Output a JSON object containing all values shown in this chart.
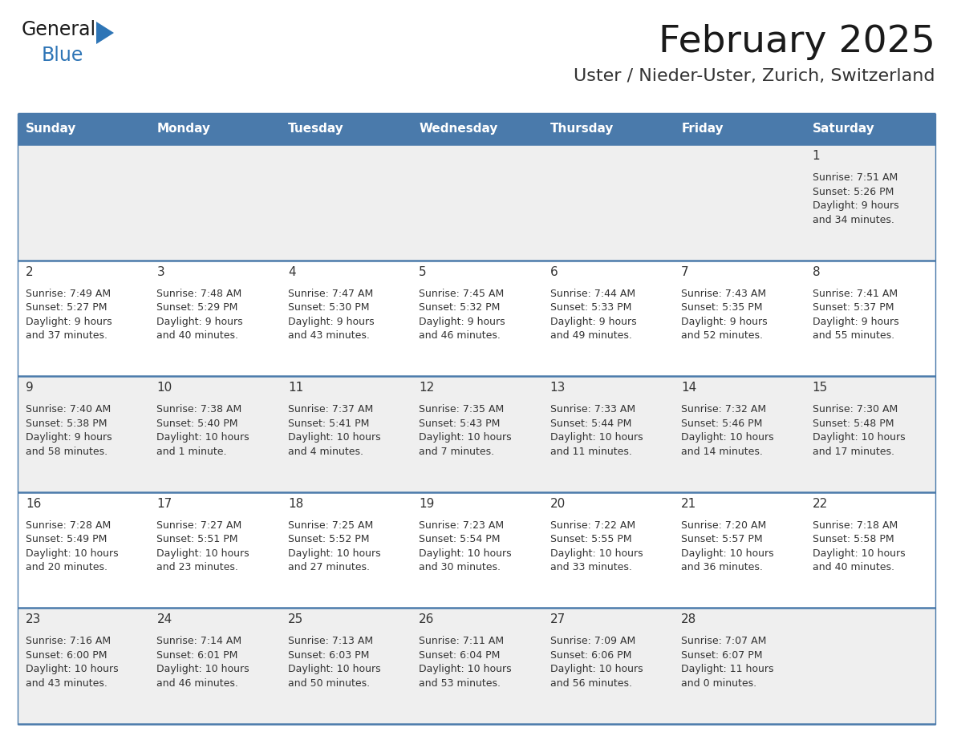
{
  "title": "February 2025",
  "subtitle": "Uster / Nieder-Uster, Zurich, Switzerland",
  "days_of_week": [
    "Sunday",
    "Monday",
    "Tuesday",
    "Wednesday",
    "Thursday",
    "Friday",
    "Saturday"
  ],
  "header_bg": "#4a7aab",
  "header_text": "#ffffff",
  "row_bg_odd": "#efefef",
  "row_bg_even": "#ffffff",
  "day_num_bg_odd": "#efefef",
  "day_num_bg_even": "#ffffff",
  "border_color": "#4a7aab",
  "text_color": "#333333",
  "day_number_color": "#333333",
  "title_color": "#1a1a1a",
  "subtitle_color": "#333333",
  "logo_general_color": "#1a1a1a",
  "logo_blue_color": "#2e75b6",
  "calendar_data": [
    [
      null,
      null,
      null,
      null,
      null,
      null,
      {
        "day": 1,
        "sunrise": "7:51 AM",
        "sunset": "5:26 PM",
        "daylight": "9 hours\nand 34 minutes."
      }
    ],
    [
      {
        "day": 2,
        "sunrise": "7:49 AM",
        "sunset": "5:27 PM",
        "daylight": "9 hours\nand 37 minutes."
      },
      {
        "day": 3,
        "sunrise": "7:48 AM",
        "sunset": "5:29 PM",
        "daylight": "9 hours\nand 40 minutes."
      },
      {
        "day": 4,
        "sunrise": "7:47 AM",
        "sunset": "5:30 PM",
        "daylight": "9 hours\nand 43 minutes."
      },
      {
        "day": 5,
        "sunrise": "7:45 AM",
        "sunset": "5:32 PM",
        "daylight": "9 hours\nand 46 minutes."
      },
      {
        "day": 6,
        "sunrise": "7:44 AM",
        "sunset": "5:33 PM",
        "daylight": "9 hours\nand 49 minutes."
      },
      {
        "day": 7,
        "sunrise": "7:43 AM",
        "sunset": "5:35 PM",
        "daylight": "9 hours\nand 52 minutes."
      },
      {
        "day": 8,
        "sunrise": "7:41 AM",
        "sunset": "5:37 PM",
        "daylight": "9 hours\nand 55 minutes."
      }
    ],
    [
      {
        "day": 9,
        "sunrise": "7:40 AM",
        "sunset": "5:38 PM",
        "daylight": "9 hours\nand 58 minutes."
      },
      {
        "day": 10,
        "sunrise": "7:38 AM",
        "sunset": "5:40 PM",
        "daylight": "10 hours\nand 1 minute."
      },
      {
        "day": 11,
        "sunrise": "7:37 AM",
        "sunset": "5:41 PM",
        "daylight": "10 hours\nand 4 minutes."
      },
      {
        "day": 12,
        "sunrise": "7:35 AM",
        "sunset": "5:43 PM",
        "daylight": "10 hours\nand 7 minutes."
      },
      {
        "day": 13,
        "sunrise": "7:33 AM",
        "sunset": "5:44 PM",
        "daylight": "10 hours\nand 11 minutes."
      },
      {
        "day": 14,
        "sunrise": "7:32 AM",
        "sunset": "5:46 PM",
        "daylight": "10 hours\nand 14 minutes."
      },
      {
        "day": 15,
        "sunrise": "7:30 AM",
        "sunset": "5:48 PM",
        "daylight": "10 hours\nand 17 minutes."
      }
    ],
    [
      {
        "day": 16,
        "sunrise": "7:28 AM",
        "sunset": "5:49 PM",
        "daylight": "10 hours\nand 20 minutes."
      },
      {
        "day": 17,
        "sunrise": "7:27 AM",
        "sunset": "5:51 PM",
        "daylight": "10 hours\nand 23 minutes."
      },
      {
        "day": 18,
        "sunrise": "7:25 AM",
        "sunset": "5:52 PM",
        "daylight": "10 hours\nand 27 minutes."
      },
      {
        "day": 19,
        "sunrise": "7:23 AM",
        "sunset": "5:54 PM",
        "daylight": "10 hours\nand 30 minutes."
      },
      {
        "day": 20,
        "sunrise": "7:22 AM",
        "sunset": "5:55 PM",
        "daylight": "10 hours\nand 33 minutes."
      },
      {
        "day": 21,
        "sunrise": "7:20 AM",
        "sunset": "5:57 PM",
        "daylight": "10 hours\nand 36 minutes."
      },
      {
        "day": 22,
        "sunrise": "7:18 AM",
        "sunset": "5:58 PM",
        "daylight": "10 hours\nand 40 minutes."
      }
    ],
    [
      {
        "day": 23,
        "sunrise": "7:16 AM",
        "sunset": "6:00 PM",
        "daylight": "10 hours\nand 43 minutes."
      },
      {
        "day": 24,
        "sunrise": "7:14 AM",
        "sunset": "6:01 PM",
        "daylight": "10 hours\nand 46 minutes."
      },
      {
        "day": 25,
        "sunrise": "7:13 AM",
        "sunset": "6:03 PM",
        "daylight": "10 hours\nand 50 minutes."
      },
      {
        "day": 26,
        "sunrise": "7:11 AM",
        "sunset": "6:04 PM",
        "daylight": "10 hours\nand 53 minutes."
      },
      {
        "day": 27,
        "sunrise": "7:09 AM",
        "sunset": "6:06 PM",
        "daylight": "10 hours\nand 56 minutes."
      },
      {
        "day": 28,
        "sunrise": "7:07 AM",
        "sunset": "6:07 PM",
        "daylight": "11 hours\nand 0 minutes."
      },
      null
    ]
  ]
}
